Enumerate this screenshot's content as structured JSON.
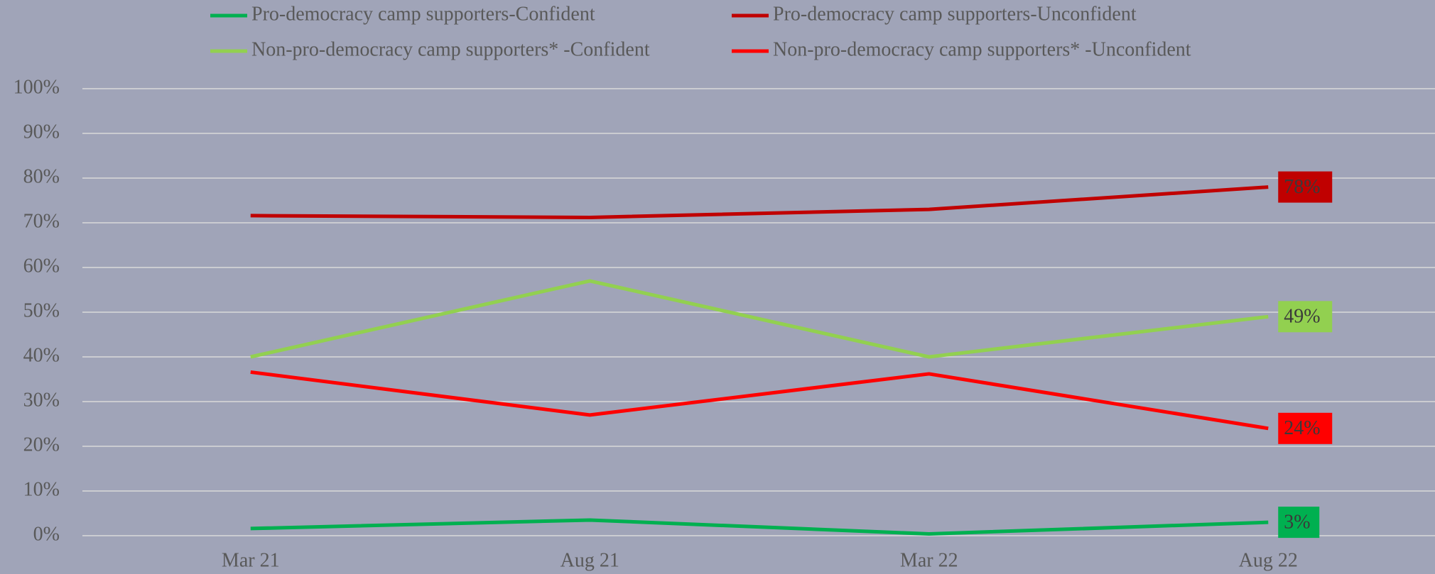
{
  "chart_data": {
    "type": "line",
    "categories": [
      "Mar 21",
      "Aug 21",
      "Mar 22",
      "Aug 22"
    ],
    "series": [
      {
        "name": "Pro-democracy camp supporters-Confident",
        "color": "#00b050",
        "values": [
          1.6,
          3.5,
          0.4,
          3
        ],
        "value_labels": [
          null,
          null,
          null,
          "3%"
        ]
      },
      {
        "name": "Pro-democracy camp supporters-Unconfident",
        "color": "#c00000",
        "values": [
          71.6,
          71.2,
          73,
          78
        ],
        "value_labels": [
          null,
          null,
          null,
          "78%"
        ]
      },
      {
        "name": "Non-pro-democracy camp supporters* -Confident",
        "color": "#92d050",
        "values": [
          40,
          57,
          40,
          49
        ],
        "value_labels": [
          null,
          null,
          null,
          "49%"
        ]
      },
      {
        "name": "Non-pro-democracy camp supporters* -Unconfident",
        "color": "#ff0000",
        "values": [
          36.6,
          27,
          36.2,
          24
        ],
        "value_labels": [
          null,
          null,
          null,
          "24%"
        ]
      }
    ],
    "ylim": [
      0,
      100
    ],
    "yticks": [
      {
        "value": 0,
        "label": "0%"
      },
      {
        "value": 10,
        "label": "10%"
      },
      {
        "value": 20,
        "label": "20%"
      },
      {
        "value": 30,
        "label": "30%"
      },
      {
        "value": 40,
        "label": "40%"
      },
      {
        "value": 50,
        "label": "50%"
      },
      {
        "value": 60,
        "label": "60%"
      },
      {
        "value": 70,
        "label": "70%"
      },
      {
        "value": 80,
        "label": "80%"
      },
      {
        "value": 90,
        "label": "90%"
      },
      {
        "value": 100,
        "label": "100%"
      }
    ],
    "grid": true
  }
}
